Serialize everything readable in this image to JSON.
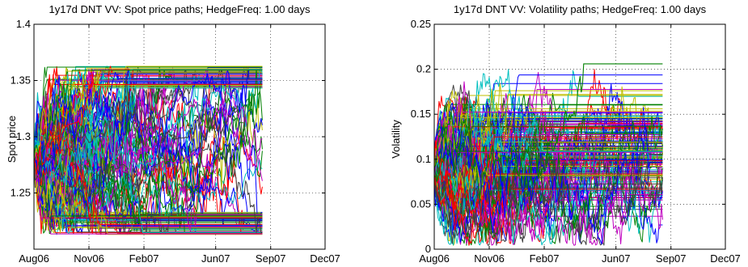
{
  "chart_data": [
    {
      "type": "line",
      "title": "1y17d DNT VV: Spot price paths; HedgeFreq: 1.00 days",
      "xlabel": "",
      "ylabel": "Spot price",
      "x_ticks": [
        "Aug06",
        "Nov06",
        "Feb07",
        "Jun07",
        "Sep07",
        "Dec07"
      ],
      "xlim": [
        "2006-08-01",
        "2007-12-01"
      ],
      "path_end": "2007-08-18",
      "y_ticks": [
        "1.25",
        "1.3",
        "1.35",
        "1.4"
      ],
      "ylim": [
        1.2,
        1.4
      ],
      "grid": true,
      "start_value": 1.28,
      "barrier_lower": 1.213,
      "barrier_upper": 1.363,
      "approx_path_count": 150,
      "series_note": "Many Monte Carlo simulated spot price paths starting at about 1.28; paths that touch a barrier (about 1.213 / 1.363) are frozen as flat lines to the end.",
      "colors": [
        "#0000ff",
        "#008000",
        "#ff0000",
        "#00bfbf",
        "#bf00bf",
        "#bfbf00",
        "#404040"
      ]
    },
    {
      "type": "line",
      "title": "1y17d DNT VV: Volatility paths; HedgeFreq: 1.00 days",
      "xlabel": "",
      "ylabel": "Volatility",
      "x_ticks": [
        "Aug06",
        "Nov06",
        "Feb07",
        "Jun07",
        "Sep07",
        "Dec07"
      ],
      "xlim": [
        "2006-08-01",
        "2007-12-01"
      ],
      "path_end": "2007-08-18",
      "y_ticks": [
        "0",
        "0.05",
        "0.1",
        "0.15",
        "0.2",
        "0.25"
      ],
      "ylim": [
        0,
        0.25
      ],
      "grid": true,
      "start_value": 0.09,
      "highlight_path": {
        "color": "#008000",
        "knock_date": "2007-04-08",
        "frozen_value": 0.206
      },
      "series_note": "Stochastic volatility paths for the same simulations starting at about 0.09; each path becomes flat after its spot path knocks out.",
      "colors": [
        "#0000ff",
        "#008000",
        "#ff0000",
        "#00bfbf",
        "#bf00bf",
        "#bfbf00",
        "#404040"
      ]
    }
  ]
}
